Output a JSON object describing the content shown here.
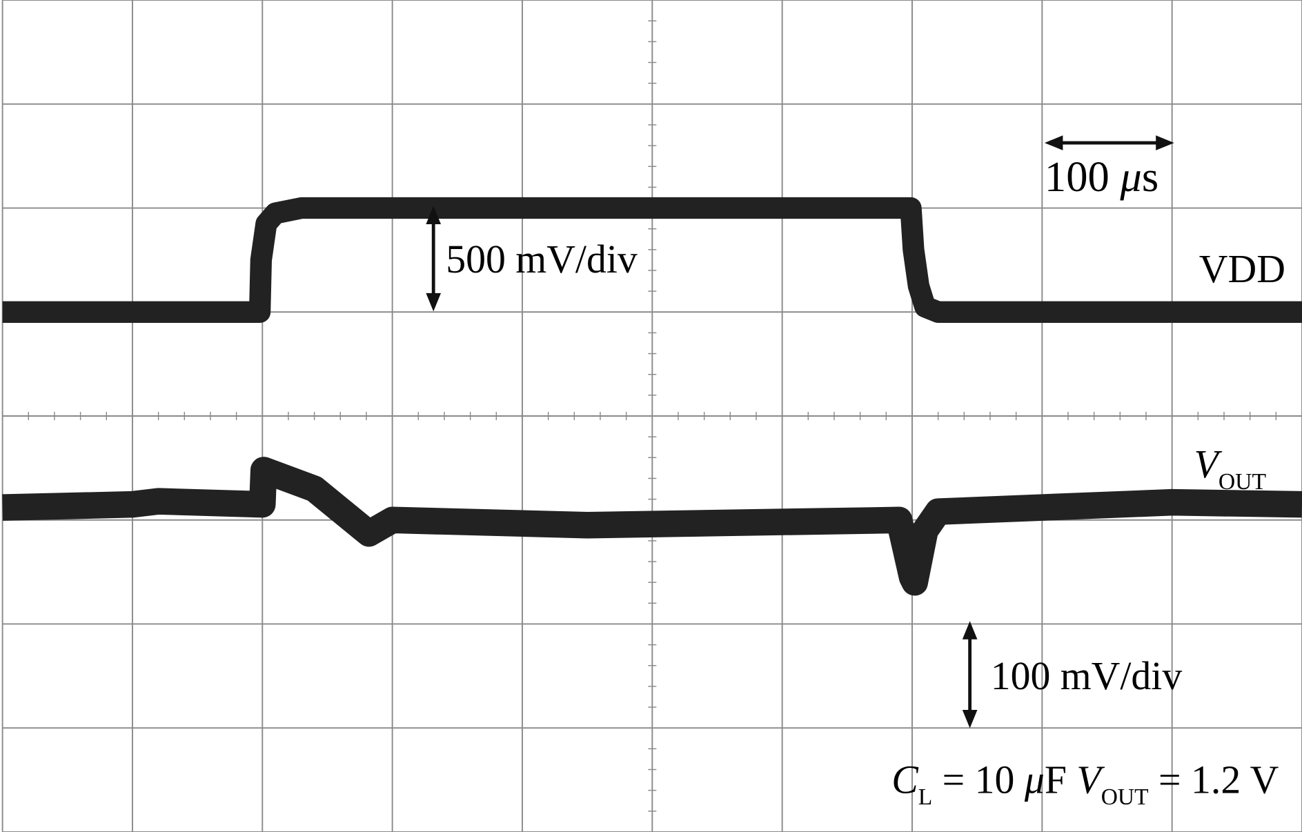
{
  "chart_data": {
    "type": "line",
    "series": [
      {
        "name": "VDD",
        "color": "#222222",
        "x": [
          0,
          1.98,
          1.99,
          2.03,
          2.1,
          2.3,
          6.99,
          7.01,
          7.05,
          7.1,
          7.2,
          10
        ],
        "values": [
          5.0,
          5.0,
          5.5,
          5.85,
          5.95,
          6.0,
          6.0,
          5.6,
          5.25,
          5.05,
          5.0,
          5.0
        ]
      },
      {
        "name": "VOUT",
        "color": "#222222",
        "x": [
          0,
          1.0,
          1.2,
          2.0,
          2.01,
          2.4,
          2.82,
          3.0,
          4.5,
          6.9,
          7.0,
          7.02,
          7.1,
          7.2,
          8,
          9,
          10
        ],
        "values": [
          3.12,
          3.15,
          3.18,
          3.15,
          3.48,
          3.3,
          2.87,
          3.0,
          2.95,
          3.0,
          2.45,
          2.4,
          2.9,
          3.08,
          3.12,
          3.17,
          3.15
        ]
      }
    ],
    "xlim": [
      0,
      10
    ],
    "ylim": [
      0,
      8
    ],
    "xticks": [
      0,
      1,
      2,
      3,
      4,
      5,
      6,
      7,
      8,
      9,
      10
    ],
    "yticks": [
      0,
      1,
      2,
      3,
      4,
      5,
      6,
      7,
      8
    ],
    "grid": true,
    "annotations": [
      {
        "runs": [
          {
            "text": "100 "
          },
          {
            "text": "μ",
            "italic": true
          },
          {
            "text": "s"
          }
        ]
      },
      {
        "runs": [
          {
            "text": "500 mV/div"
          }
        ]
      },
      {
        "runs": [
          {
            "text": "100 mV/div"
          }
        ]
      },
      {
        "runs": [
          {
            "text": "C",
            "italic": true
          },
          {
            "text": "L",
            "sub": true
          },
          {
            "text": " = 10 "
          },
          {
            "text": "μ",
            "italic": true
          },
          {
            "text": "F "
          },
          {
            "text": "V",
            "italic": true
          },
          {
            "text": "OUT",
            "sub": true
          },
          {
            "text": " = 1.2 V"
          }
        ]
      }
    ]
  }
}
